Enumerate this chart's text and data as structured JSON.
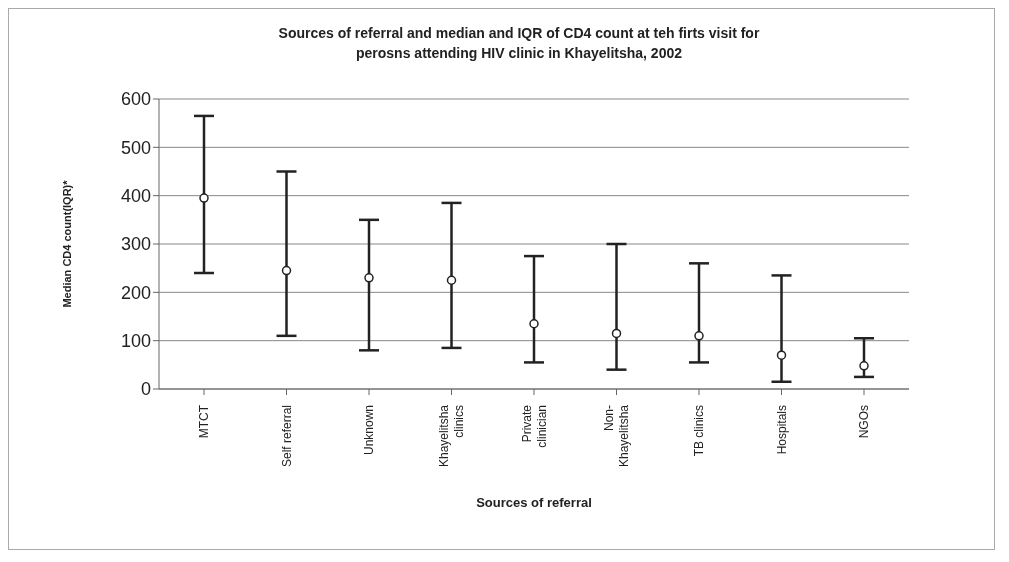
{
  "chart_data": {
    "type": "scatter",
    "title": "Sources of referral and median and IQR of CD4 count at teh firts visit for perosns attending HIV clinic in Khayelitsha, 2002",
    "xlabel": "Sources of referral",
    "ylabel": "Median CD4 count(IQR)*",
    "categories": [
      "MTCT",
      "Self referral",
      "Unknown",
      "Khayelitsha clinics",
      "Private clinician",
      "Non-Khayelitsha",
      "TB clinics",
      "Hospitals",
      "NGOs"
    ],
    "series": [
      {
        "color": "#222222",
        "values": [
          395,
          245,
          230,
          225,
          135,
          115,
          110,
          70,
          48
        ],
        "errors": [
          [
            240,
            565
          ],
          [
            110,
            450
          ],
          [
            80,
            350
          ],
          [
            85,
            385
          ],
          [
            55,
            275
          ],
          [
            40,
            300
          ],
          [
            55,
            260
          ],
          [
            15,
            235
          ],
          [
            25,
            105
          ]
        ]
      }
    ],
    "ylim": [
      0,
      600
    ],
    "yticks": [
      0,
      100,
      200,
      300,
      400,
      500,
      600
    ],
    "grid": "y",
    "marker": "circle",
    "legend": false
  }
}
